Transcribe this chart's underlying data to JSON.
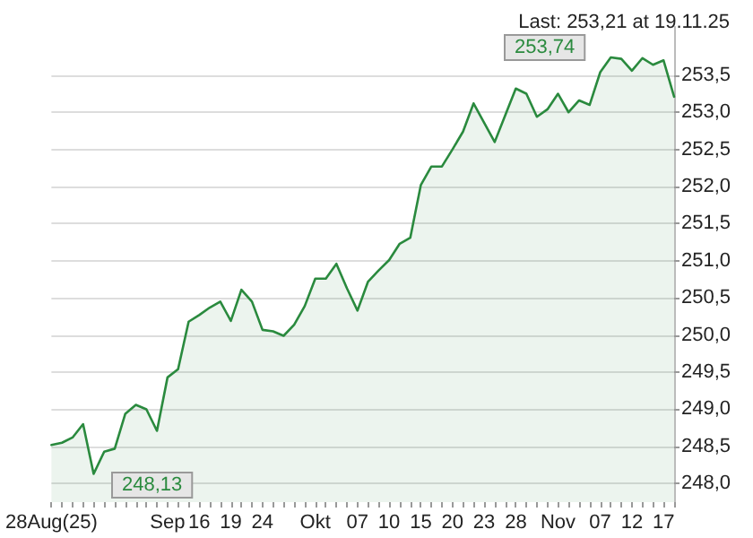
{
  "chart_data": {
    "type": "area",
    "title": "Last: 253,21 at 19.11.25",
    "categories": [
      "28Aug(25)",
      null,
      null,
      null,
      null,
      null,
      null,
      null,
      null,
      null,
      null,
      "Sep",
      null,
      null,
      "16",
      null,
      null,
      "19",
      null,
      null,
      "24",
      null,
      null,
      null,
      null,
      "Okt",
      null,
      null,
      null,
      "07",
      null,
      null,
      "10",
      null,
      null,
      "15",
      null,
      null,
      "20",
      null,
      null,
      "23",
      null,
      null,
      "28",
      null,
      null,
      null,
      "Nov",
      null,
      null,
      null,
      "07",
      null,
      null,
      "12",
      null,
      null,
      "17",
      null
    ],
    "series": [
      {
        "color": "#2a8a3e",
        "values": [
          248.52,
          248.55,
          248.62,
          248.8,
          248.13,
          248.43,
          248.47,
          248.94,
          249.06,
          249.0,
          248.71,
          249.43,
          249.54,
          250.18,
          250.27,
          250.37,
          250.45,
          250.19,
          250.61,
          250.45,
          250.07,
          250.05,
          249.99,
          250.14,
          250.39,
          250.76,
          250.76,
          250.96,
          250.63,
          250.33,
          250.72,
          250.87,
          251.01,
          251.23,
          251.31,
          252.02,
          252.27,
          252.27,
          252.5,
          252.74,
          253.12,
          252.86,
          252.6,
          252.96,
          253.32,
          253.25,
          252.94,
          253.04,
          253.25,
          253.0,
          253.16,
          253.1,
          253.54,
          253.74,
          253.72,
          253.56,
          253.73,
          253.64,
          253.7,
          253.21
        ]
      }
    ],
    "annotations": [
      "253,74",
      "248,13"
    ],
    "ylim": [
      247.75,
      254.15
    ],
    "yticks": [
      {
        "value": 248,
        "label": "248,0"
      },
      {
        "value": 248.5,
        "label": "248,5"
      },
      {
        "value": 249,
        "label": "249,0"
      },
      {
        "value": 249.5,
        "label": "249,5"
      },
      {
        "value": 250,
        "label": "250,0"
      },
      {
        "value": 250.5,
        "label": "250,5"
      },
      {
        "value": 251,
        "label": "251,0"
      },
      {
        "value": 251.5,
        "label": "251,5"
      },
      {
        "value": 252,
        "label": "252,0"
      },
      {
        "value": 252.5,
        "label": "252,5"
      },
      {
        "value": 253,
        "label": "253,0"
      },
      {
        "value": 253.5,
        "label": "253,5"
      }
    ],
    "grid": "y",
    "marker": "none",
    "line_style": "solid"
  }
}
